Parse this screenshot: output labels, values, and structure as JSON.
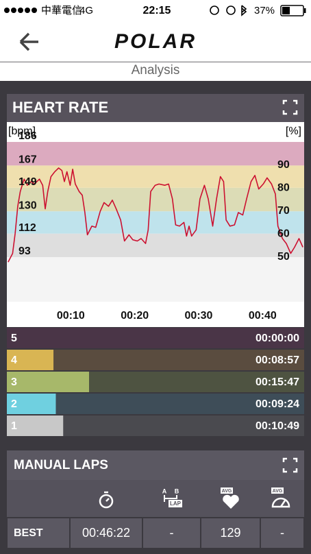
{
  "status_bar": {
    "carrier": "中華電信",
    "network": "4G",
    "time": "22:15",
    "battery": "37%"
  },
  "header": {
    "logo": "POLAR",
    "title": "Analysis"
  },
  "chart_data": [
    {
      "type": "line",
      "title": "HEART RATE",
      "y_label": "[bpm]",
      "y2_label": "[%]",
      "x": [
        0.2,
        0.9,
        1.3,
        1.7,
        2.1,
        2.7,
        3.2,
        3.8,
        4.3,
        5.1,
        5.6,
        6.0,
        6.4,
        6.9,
        7.5,
        8.1,
        8.6,
        9.0,
        9.4,
        9.9,
        10.3,
        10.7,
        11.3,
        11.8,
        12.2,
        12.6,
        13.3,
        13.9,
        14.6,
        15.2,
        15.9,
        16.5,
        17.1,
        17.8,
        18.4,
        19.1,
        19.7,
        20.4,
        21.0,
        21.7,
        22.1,
        22.5,
        23.2,
        23.8,
        24.7,
        25.3,
        25.9,
        26.4,
        27.0,
        27.7,
        28.1,
        28.5,
        28.9,
        29.6,
        30.2,
        30.9,
        31.5,
        32.2,
        32.8,
        33.4,
        33.9,
        34.3,
        34.9,
        35.6,
        36.2,
        36.9,
        37.5,
        38.2,
        38.8,
        39.4,
        40.1,
        40.7,
        41.4,
        42.0,
        42.4,
        43.1,
        43.7,
        44.4,
        45.0,
        45.7,
        46.3
      ],
      "series": [
        {
          "color": "#cc1030",
          "values": [
            89,
            96,
            112,
            134,
            146,
            156,
            151,
            154,
            152,
            156,
            151,
            132,
            146,
            158,
            162,
            165,
            163,
            154,
            162,
            151,
            164,
            152,
            146,
            143,
            129,
            111,
            118,
            117,
            130,
            137,
            134,
            139,
            132,
            123,
            106,
            111,
            107,
            106,
            108,
            104,
            115,
            146,
            151,
            152,
            151,
            152,
            140,
            119,
            118,
            121,
            110,
            118,
            110,
            115,
            140,
            151,
            140,
            118,
            140,
            158,
            154,
            123,
            118,
            119,
            129,
            127,
            140,
            154,
            159,
            148,
            152,
            157,
            152,
            144,
            118,
            108,
            104,
            96,
            101,
            108,
            101
          ]
        }
      ],
      "xlim": [
        0,
        46.5
      ],
      "xticks": [
        {
          "value": 10,
          "label": "00:10"
        },
        {
          "value": 20,
          "label": "00:20"
        },
        {
          "value": 30,
          "label": "00:30"
        },
        {
          "value": 40,
          "label": "00:40"
        }
      ],
      "ylim": [
        57,
        191
      ],
      "yticks": [
        93,
        112,
        130,
        149,
        167,
        186
      ],
      "y2lim": [
        30.6,
        102.7
      ],
      "y2ticks": [
        50,
        60,
        70,
        80,
        90
      ],
      "band_colors": [
        "#f4f4f4",
        "#dedede",
        "#bfe3ec",
        "#dcdcb6",
        "#efdfae",
        "#dcaabf"
      ]
    },
    {
      "type": "bar",
      "orientation": "horizontal",
      "categories": [
        "5",
        "4",
        "3",
        "2",
        "1"
      ],
      "values": [
        0,
        537,
        947,
        564,
        649
      ],
      "value_labels": [
        "00:00:00",
        "00:08:57",
        "00:15:47",
        "00:09:24",
        "00:10:49"
      ],
      "colors": [
        "#8a4f72",
        "#d9b553",
        "#a7b86a",
        "#6fd0e0",
        "#c8c8c8"
      ],
      "row_colors": [
        "#4a3547",
        "#5a4c3f",
        "#4e5341",
        "#3e4d58",
        "#4a4a4f"
      ],
      "xlim": [
        0,
        3425
      ]
    }
  ],
  "manual_laps": {
    "title": "MANUAL LAPS",
    "icon_texts": {
      "split_a": "A",
      "split_b": "B",
      "lap": "LAP",
      "avg_hr": "AVG",
      "avg_speed": "AVG"
    },
    "rows": [
      [
        "BEST",
        "00:46:22",
        "-",
        129,
        "-"
      ]
    ]
  }
}
